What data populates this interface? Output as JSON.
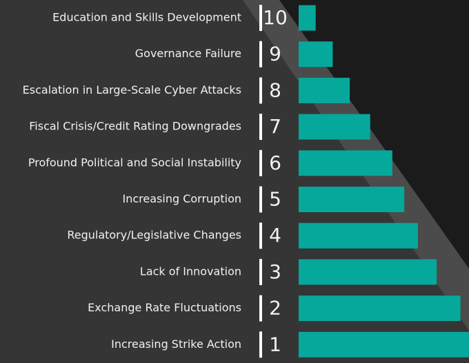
{
  "chart_data": {
    "type": "bar",
    "categories": [
      "Education and Skills Development",
      "Governance Failure",
      "Escalation in Large-Scale Cyber Attacks",
      "Fiscal Crisis/Credit Rating Downgrades",
      "Profound Political and Social Instability",
      "Increasing Corruption",
      "Regulatory/Legislative Changes",
      "Lack of Innovation",
      "Exchange Rate Fluctuations",
      "Increasing Strike Action"
    ],
    "ranks": [
      10,
      9,
      8,
      7,
      6,
      5,
      4,
      3,
      2,
      1
    ],
    "values": [
      10,
      20,
      30,
      42,
      55,
      62,
      70,
      81,
      95,
      100
    ],
    "xlim": [
      0,
      100
    ],
    "color": "#06a89b"
  }
}
